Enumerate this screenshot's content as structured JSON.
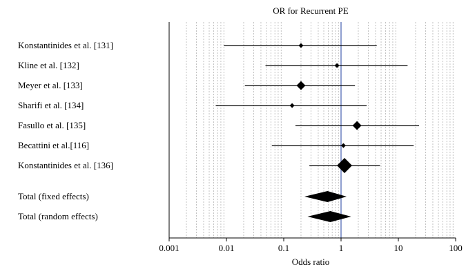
{
  "chart_data": {
    "type": "forest",
    "title": "OR for Recurrent PE",
    "xlabel": "Odds ratio",
    "xscale": "log",
    "xlim": [
      0.001,
      100
    ],
    "xticks": [
      {
        "value": 0.001,
        "label": "0.001"
      },
      {
        "value": 0.01,
        "label": "0.01"
      },
      {
        "value": 0.1,
        "label": "0.1"
      },
      {
        "value": 1,
        "label": "1"
      },
      {
        "value": 10,
        "label": "10"
      },
      {
        "value": 100,
        "label": "100"
      }
    ],
    "reference_line": 1,
    "grid": true,
    "studies": [
      {
        "label": "Konstantinides et al. [131]",
        "or": 0.2,
        "ci_low": 0.009,
        "ci_high": 4.2,
        "weight": 1
      },
      {
        "label": "Kline et al. [132]",
        "or": 0.85,
        "ci_low": 0.048,
        "ci_high": 14.5,
        "weight": 1
      },
      {
        "label": "Meyer et al. [133]",
        "or": 0.2,
        "ci_low": 0.021,
        "ci_high": 1.75,
        "weight": 2
      },
      {
        "label": "Sharifi et al. [134]",
        "or": 0.14,
        "ci_low": 0.0065,
        "ci_high": 2.8,
        "weight": 1
      },
      {
        "label": "Fasullo et al. [135]",
        "or": 1.9,
        "ci_low": 0.16,
        "ci_high": 23,
        "weight": 2
      },
      {
        "label": "Becattini et al.[116]",
        "or": 1.1,
        "ci_low": 0.062,
        "ci_high": 18.5,
        "weight": 1
      },
      {
        "label": "Konstantinides et al. [136]",
        "or": 1.15,
        "ci_low": 0.28,
        "ci_high": 4.8,
        "weight": 3
      }
    ],
    "totals": [
      {
        "label": "Total (fixed effects)",
        "or": 0.58,
        "ci_low": 0.23,
        "ci_high": 1.25
      },
      {
        "label": "Total (random effects)",
        "or": 0.65,
        "ci_low": 0.26,
        "ci_high": 1.5
      }
    ]
  }
}
